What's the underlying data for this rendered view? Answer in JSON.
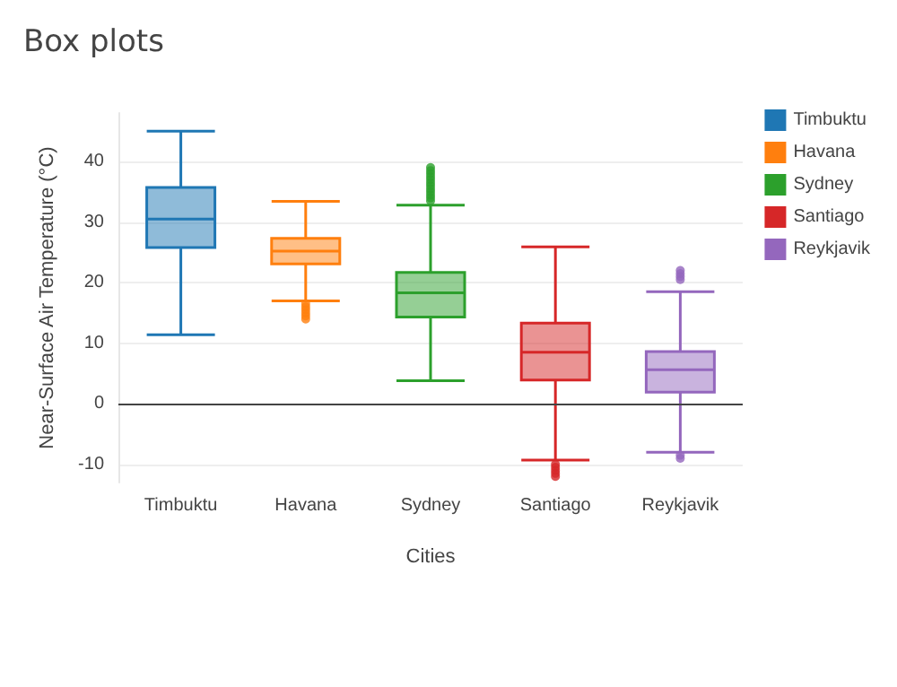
{
  "chart_data": {
    "type": "box",
    "title": "Box plots",
    "xlabel": "Cities",
    "ylabel": "Near-Surface Air Temperature (°C)",
    "categories": [
      "Timbuktu",
      "Havana",
      "Sydney",
      "Santiago",
      "Reykjavik"
    ],
    "series": [
      {
        "name": "Timbuktu",
        "color": "#1f77b4",
        "boxes": [
          {
            "low": 11.4,
            "q1": 25.8,
            "median": 30.5,
            "q3": 35.7,
            "high": 45
          },
          null,
          null,
          null,
          null
        ]
      },
      {
        "name": "Havana",
        "color": "#ff7f0e",
        "boxes": [
          null,
          {
            "low": 17,
            "q1": 23.1,
            "median": 25.2,
            "q3": 27.3,
            "high": 33.4,
            "outliers": [
              16.5,
              16,
              15.5,
              15,
              14.5,
              14
            ]
          },
          null,
          null,
          null
        ]
      },
      {
        "name": "Sydney",
        "color": "#2ca02c",
        "boxes": [
          null,
          null,
          {
            "low": 3.8,
            "q1": 14.3,
            "median": 18.3,
            "q3": 21.7,
            "high": 32.8,
            "outliers": [
              33.5,
              34,
              34.5,
              35,
              35.5,
              36,
              36.5,
              37,
              37.5,
              38,
              38.5,
              39
            ]
          },
          null,
          null
        ]
      },
      {
        "name": "Santiago",
        "color": "#d62728",
        "boxes": [
          null,
          null,
          null,
          {
            "low": -9.3,
            "q1": 3.9,
            "median": 8.5,
            "q3": 13.3,
            "high": 25.9,
            "outliers": [
              -10,
              -10.5,
              -11,
              -11.5,
              -12
            ]
          },
          null
        ]
      },
      {
        "name": "Reykjavik",
        "color": "#9467bd",
        "boxes": [
          null,
          null,
          null,
          null,
          {
            "low": -8,
            "q1": 1.9,
            "median": 5.6,
            "q3": 8.6,
            "high": 18.5,
            "outliers": [
              20.5,
              21,
              21.5,
              22,
              -8.5,
              -9
            ]
          }
        ]
      }
    ],
    "ylim": [
      -13,
      48
    ],
    "yticks": [
      -10,
      0,
      10,
      20,
      30,
      40
    ],
    "grid": "y",
    "legend": "top right",
    "ref_lines": [
      {
        "axis": "y",
        "value": 0,
        "color": "#444444"
      }
    ]
  }
}
